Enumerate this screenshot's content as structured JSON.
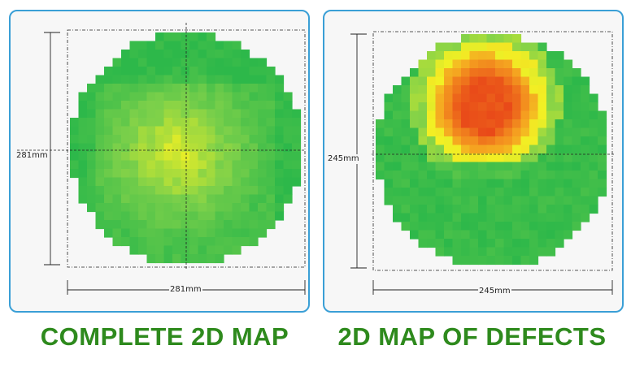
{
  "panels": [
    {
      "map_type": "complete",
      "width_label": "281mm",
      "height_label": "281mm",
      "caption": "COMPLETE 2D MAP"
    },
    {
      "map_type": "defects",
      "width_label": "245mm",
      "height_label": "245mm",
      "caption": "2D MAP OF DEFECTS"
    }
  ],
  "colors": {
    "frame_border": "#3a9fd6",
    "caption_green": "#2e8a1d",
    "heat_green": "#2db84a",
    "heat_light_green": "#7cd04a",
    "heat_yellow": "#f2f024",
    "heat_orange": "#f5a020",
    "heat_red": "#e84418"
  }
}
